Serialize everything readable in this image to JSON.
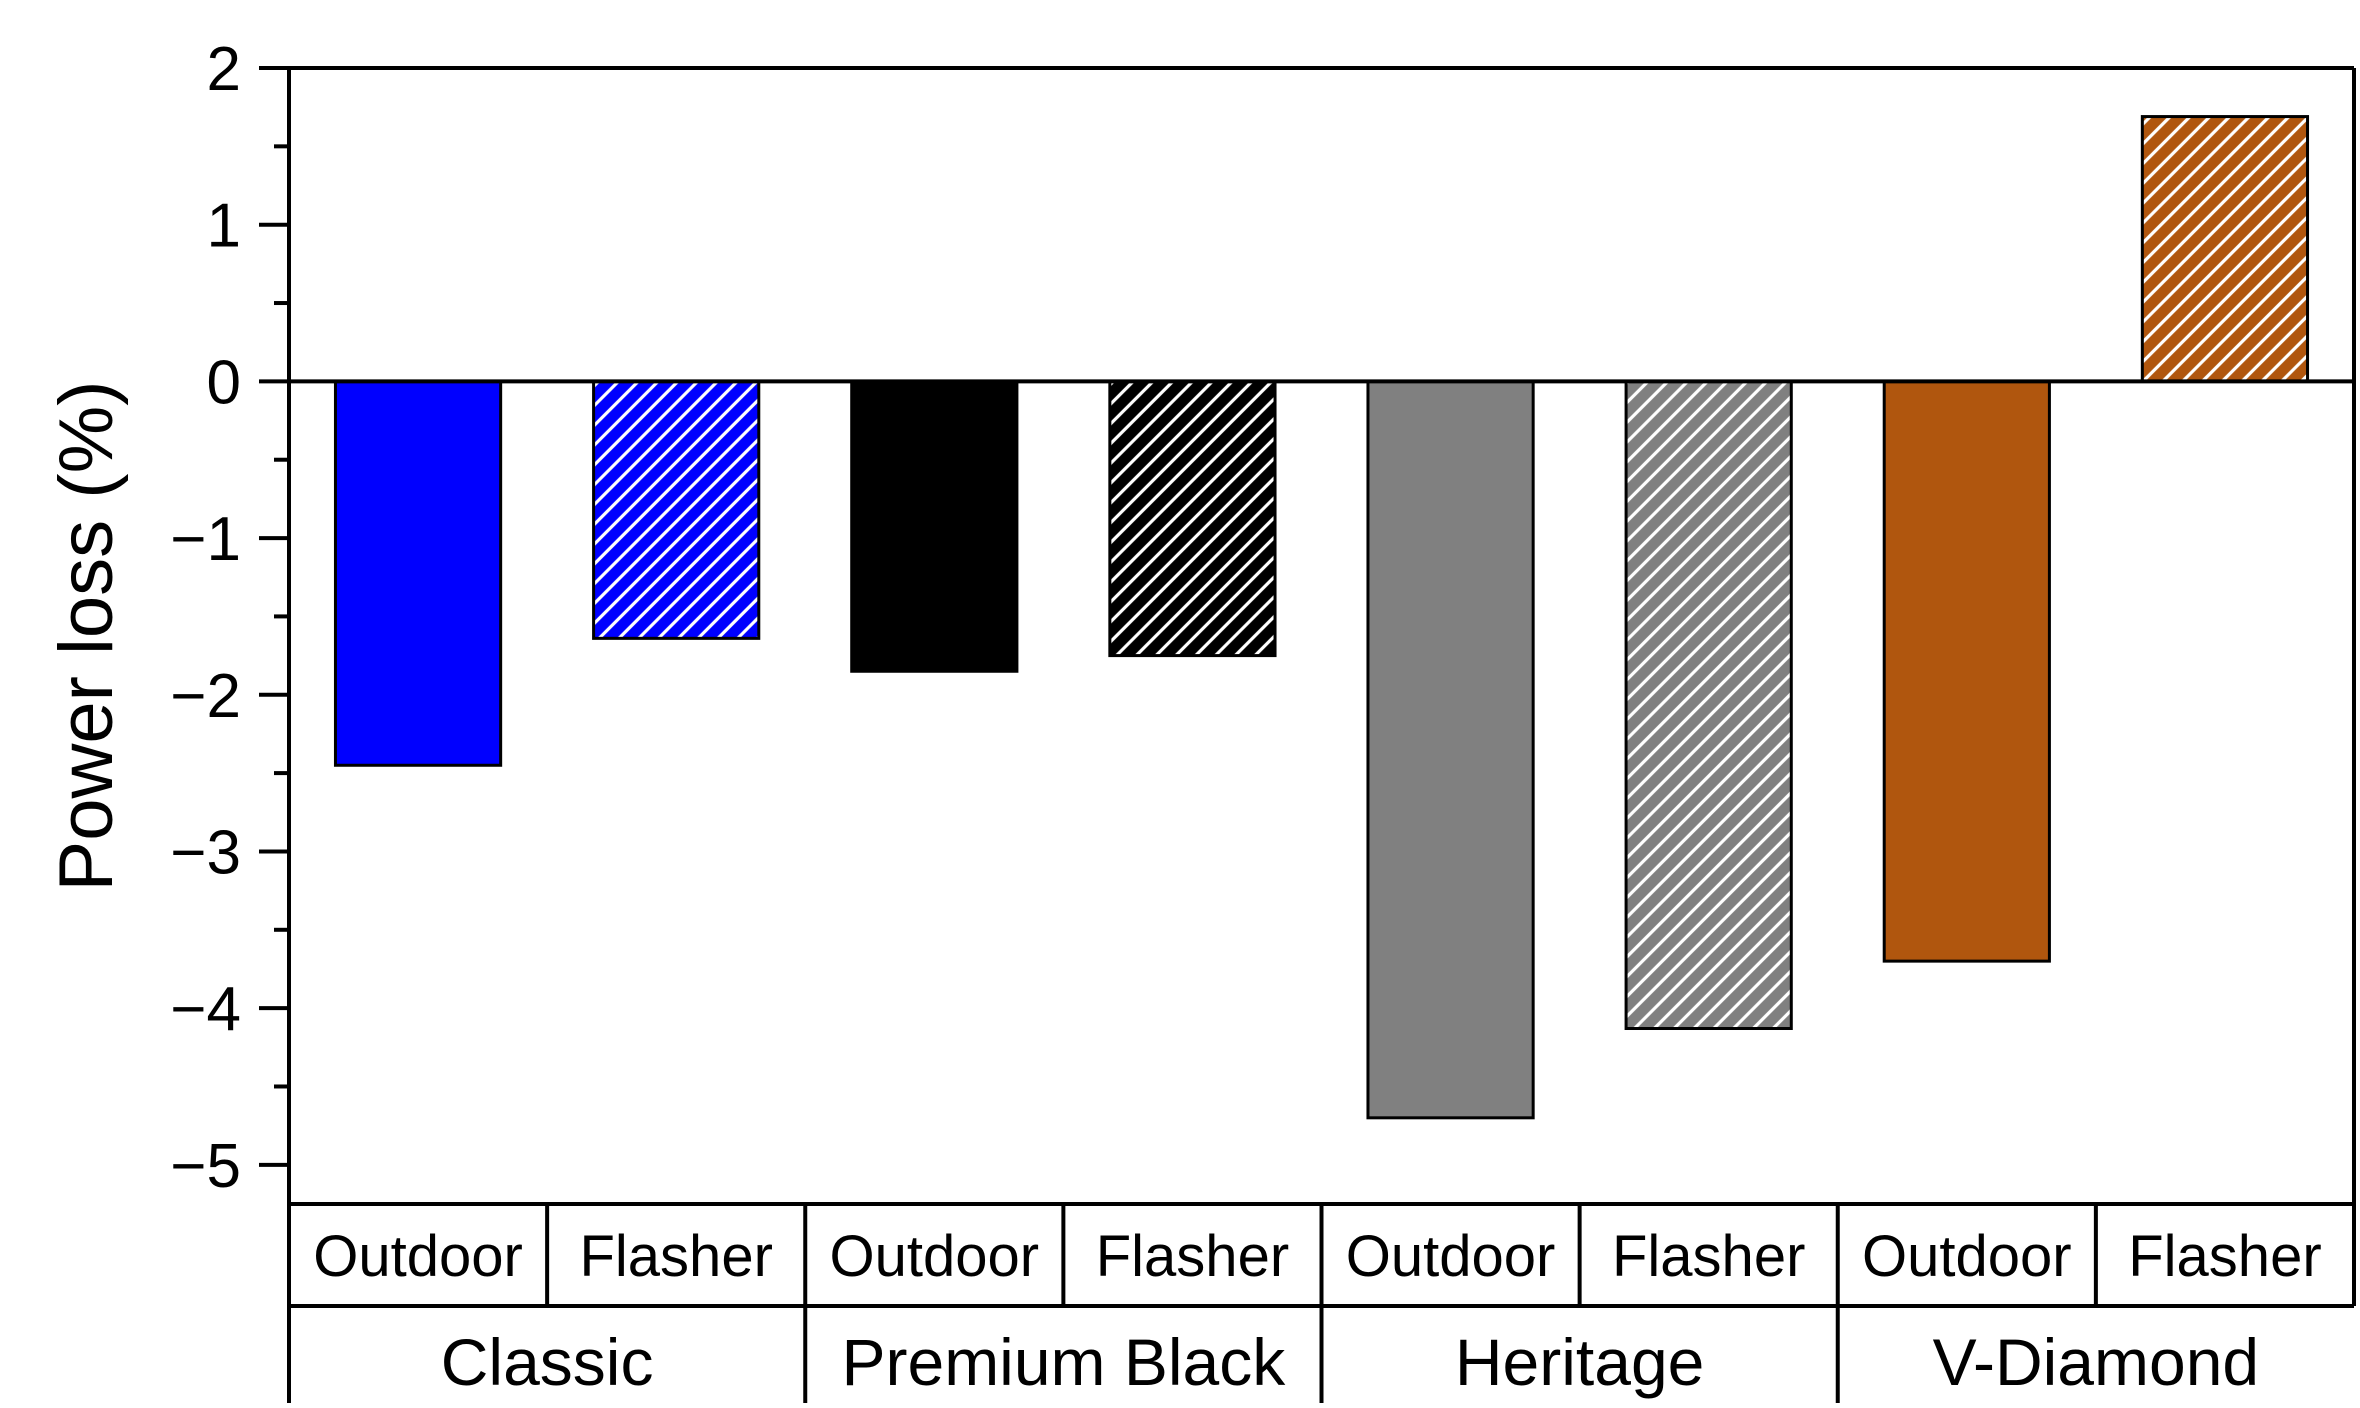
{
  "chart_data": {
    "type": "bar",
    "ylabel": "Power loss (%)",
    "ylim": [
      -5.25,
      2
    ],
    "yticks": [
      "2",
      "1",
      "0",
      "−1",
      "−2",
      "−3",
      "−4",
      "−5"
    ],
    "ytick_values": [
      2,
      1,
      0,
      -1,
      -2,
      -3,
      -4,
      -5
    ],
    "grid": false,
    "groups": [
      {
        "name": "Classic",
        "color": "#0000ff",
        "bars": [
          {
            "label": "Outdoor",
            "value": -2.45,
            "hatched": false
          },
          {
            "label": "Flasher",
            "value": -1.64,
            "hatched": true
          }
        ]
      },
      {
        "name": "Premium Black",
        "color": "#000000",
        "bars": [
          {
            "label": "Outdoor",
            "value": -1.85,
            "hatched": false
          },
          {
            "label": "Flasher",
            "value": -1.75,
            "hatched": true
          }
        ]
      },
      {
        "name": "Heritage",
        "color": "#808080",
        "bars": [
          {
            "label": "Outdoor",
            "value": -4.7,
            "hatched": false
          },
          {
            "label": "Flasher",
            "value": -4.13,
            "hatched": true
          }
        ]
      },
      {
        "name": "V-Diamond",
        "color": "#b0560e",
        "bars": [
          {
            "label": "Outdoor",
            "value": -3.7,
            "hatched": false
          },
          {
            "label": "Flasher",
            "value": 1.69,
            "hatched": true
          }
        ]
      }
    ]
  }
}
